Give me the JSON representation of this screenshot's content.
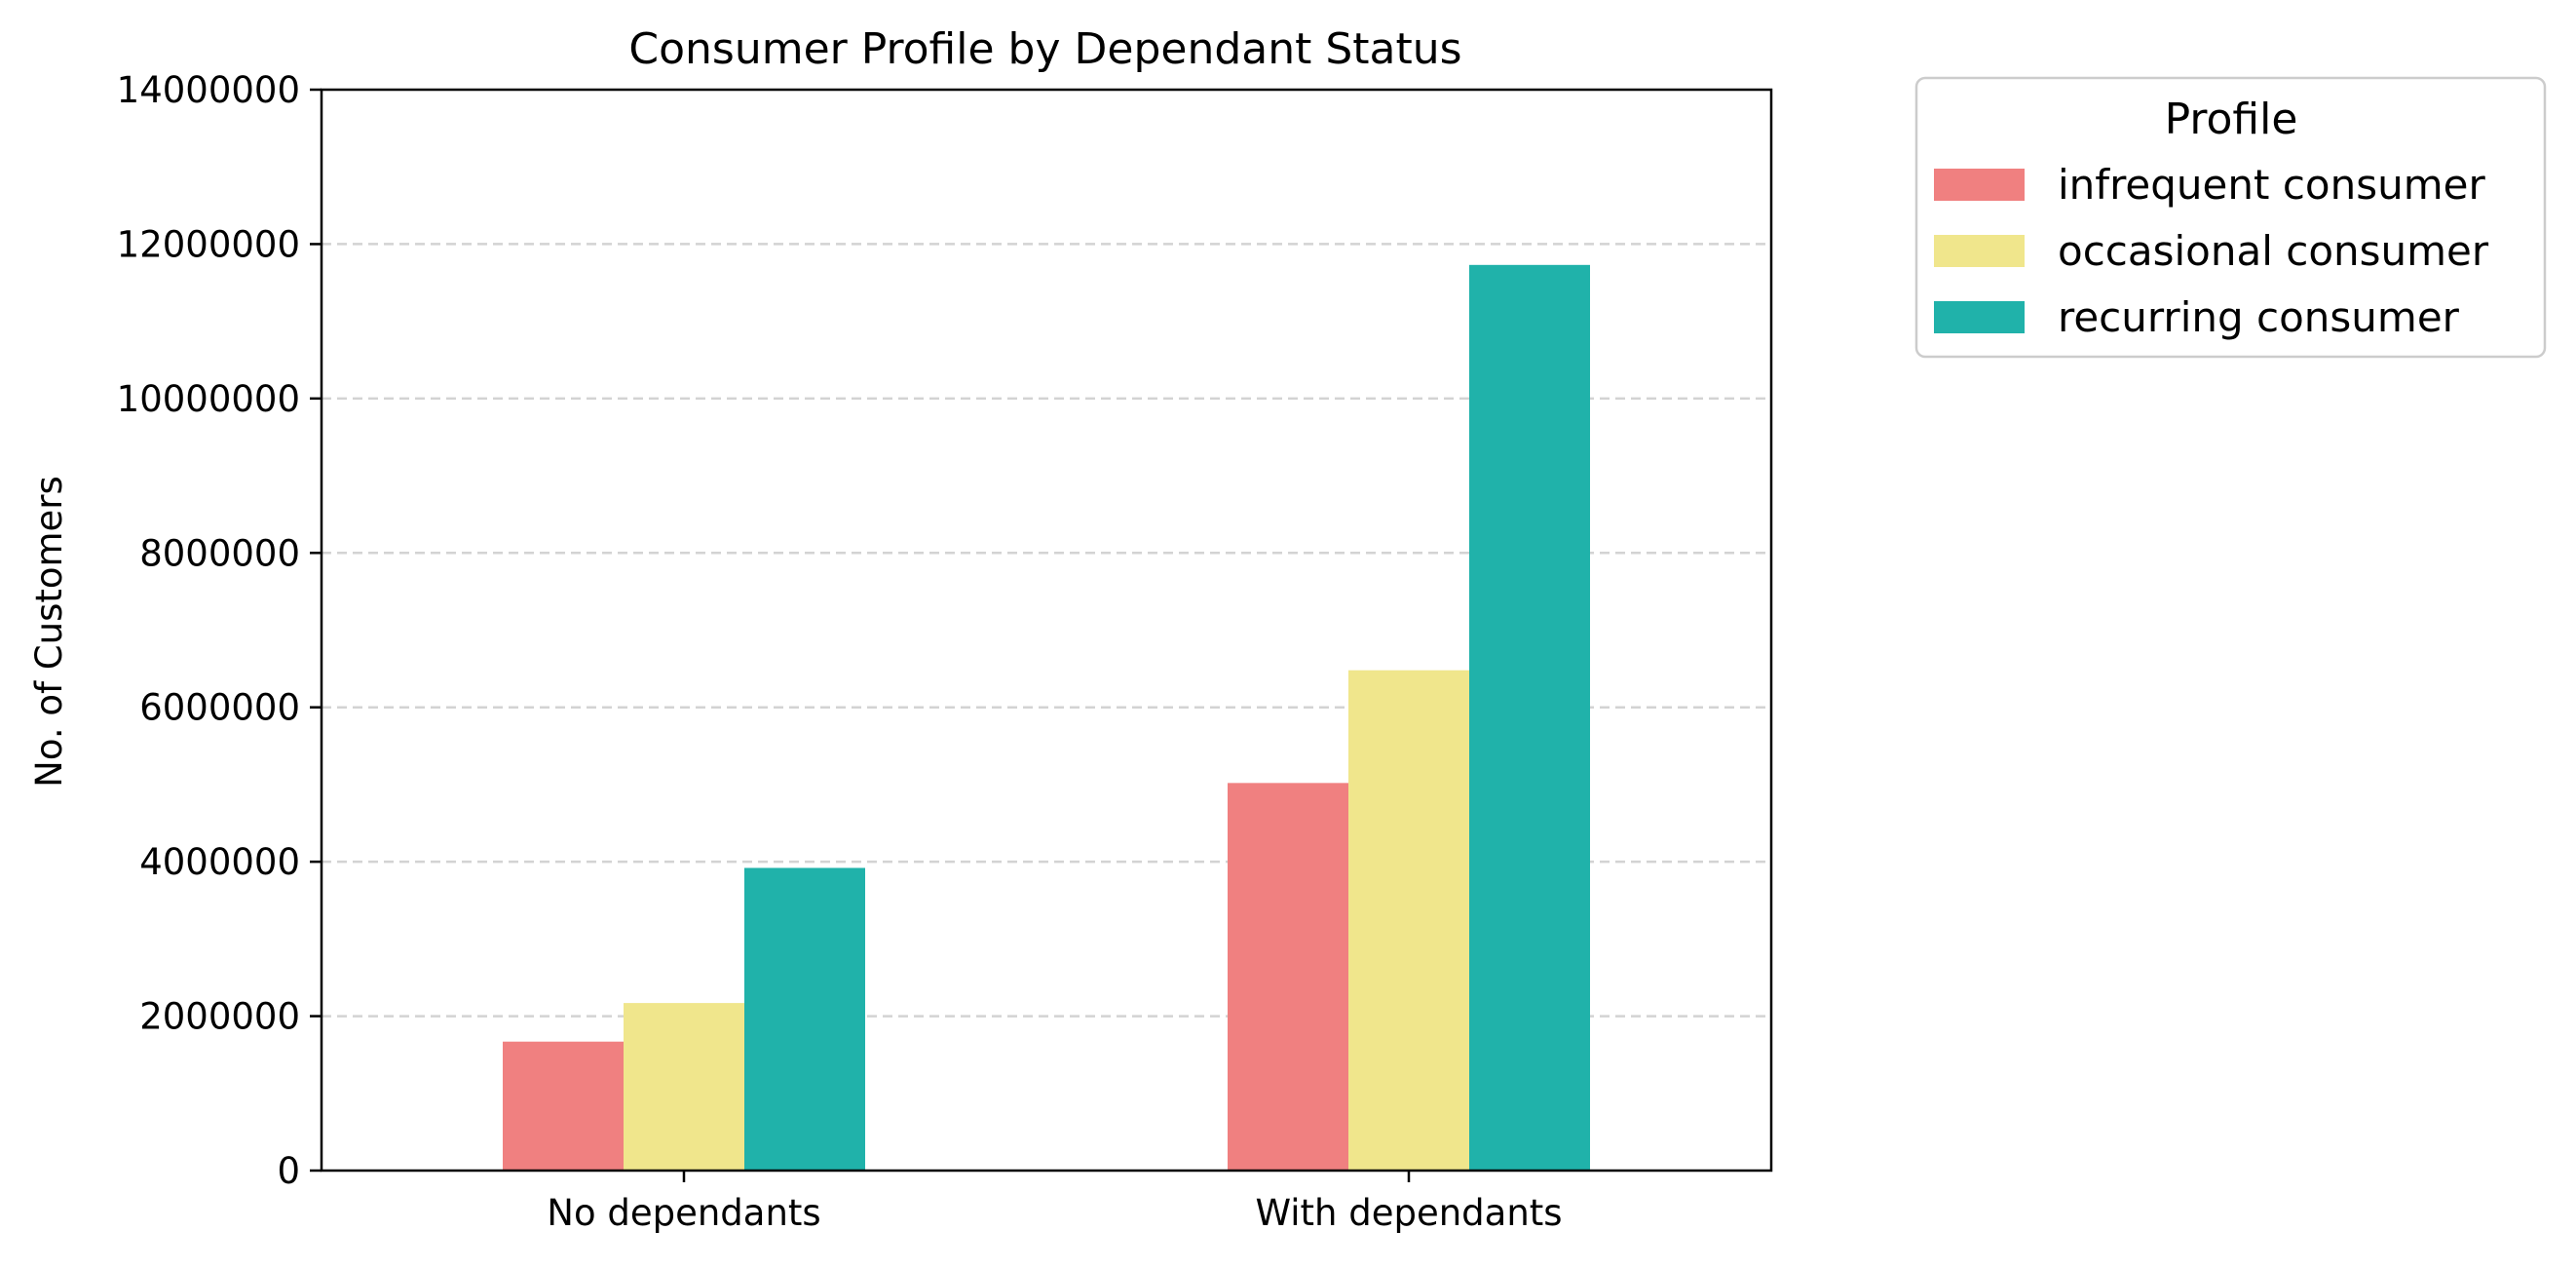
{
  "chart_data": {
    "type": "bar",
    "title": "Consumer Profile by Dependant Status",
    "xlabel": "",
    "ylabel": "No. of Customers",
    "categories": [
      "No dependants",
      "With dependants"
    ],
    "series": [
      {
        "name": "infrequent consumer",
        "color": "#F08080",
        "values": [
          1670000,
          5020000
        ]
      },
      {
        "name": "occasional consumer",
        "color": "#F0E68C",
        "values": [
          2170000,
          6480000
        ]
      },
      {
        "name": "recurring consumer",
        "color": "#20B2AA",
        "values": [
          3920000,
          11730000
        ]
      }
    ],
    "ylim": [
      0,
      14000000
    ],
    "yticks": [
      0,
      2000000,
      4000000,
      6000000,
      8000000,
      10000000,
      12000000,
      14000000
    ],
    "ytick_labels": [
      "0",
      "2000000",
      "4000000",
      "6000000",
      "8000000",
      "10000000",
      "12000000",
      "14000000"
    ],
    "grid": "y, dashed",
    "legend": {
      "title": "Profile",
      "placement": "outside upper right"
    }
  }
}
